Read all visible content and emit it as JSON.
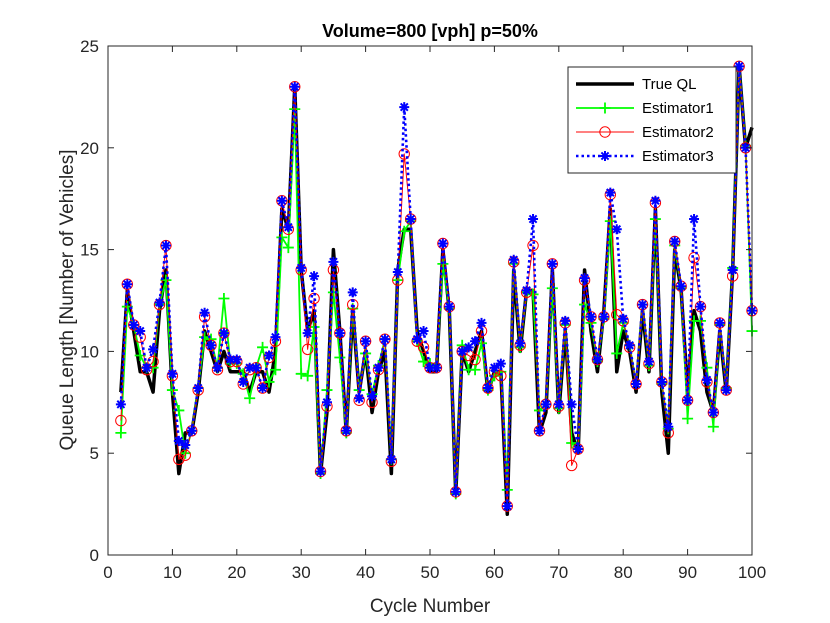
{
  "chart_data": {
    "type": "line",
    "title": "Volume=800 [vph] p=50%",
    "xlabel": "Cycle Number",
    "ylabel": "Queue Length [Number of Vehicles]",
    "xlim": [
      0,
      100
    ],
    "ylim": [
      0,
      25
    ],
    "xticks": [
      0,
      10,
      20,
      30,
      40,
      50,
      60,
      70,
      80,
      90,
      100
    ],
    "yticks": [
      0,
      5,
      10,
      15,
      20,
      25
    ],
    "grid": false,
    "legend_position": "top-right",
    "x": [
      2,
      3,
      4,
      5,
      6,
      7,
      8,
      9,
      10,
      11,
      12,
      13,
      14,
      15,
      16,
      17,
      18,
      19,
      20,
      21,
      22,
      23,
      24,
      25,
      26,
      27,
      28,
      29,
      30,
      31,
      32,
      33,
      34,
      35,
      36,
      37,
      38,
      39,
      40,
      41,
      42,
      43,
      44,
      45,
      46,
      47,
      48,
      49,
      50,
      51,
      52,
      53,
      54,
      55,
      56,
      57,
      58,
      59,
      60,
      61,
      62,
      63,
      64,
      65,
      66,
      67,
      68,
      69,
      70,
      71,
      72,
      73,
      74,
      75,
      76,
      77,
      78,
      79,
      80,
      81,
      82,
      83,
      84,
      85,
      86,
      87,
      88,
      89,
      90,
      91,
      92,
      93,
      94,
      95,
      96,
      97,
      98,
      99,
      100
    ],
    "series": [
      {
        "name": "True QL",
        "color": "#000000",
        "style": "thick-solid",
        "marker": "none",
        "values": [
          8,
          13,
          11,
          9,
          9,
          8,
          12,
          14,
          8,
          4,
          6,
          6,
          8,
          11,
          10,
          9,
          10,
          9,
          9,
          9,
          8,
          9,
          9,
          8,
          10,
          17,
          16,
          23,
          14,
          11,
          12,
          4,
          7,
          15,
          11,
          6,
          12,
          8,
          10,
          7,
          9,
          10,
          4,
          14,
          16,
          16,
          11,
          10,
          9,
          9,
          15,
          12,
          3,
          10,
          9,
          10,
          11,
          8,
          9,
          9,
          2,
          14,
          10,
          13,
          13,
          6,
          7,
          14,
          7,
          11,
          6,
          5,
          14,
          11,
          9,
          12,
          17,
          9,
          11,
          10,
          8,
          12,
          9,
          17,
          8,
          5,
          15,
          13,
          8,
          12,
          11,
          8,
          7,
          11,
          8,
          14,
          24,
          20,
          21
        ]
      },
      {
        "name": "Estimator1",
        "color": "#00ff00",
        "style": "solid",
        "marker": "plus",
        "values": [
          6,
          12.2,
          11.3,
          9.8,
          9.2,
          9.2,
          12.3,
          13.5,
          8.1,
          7.1,
          5,
          6.1,
          8.2,
          10.7,
          10.6,
          9.2,
          12.6,
          9.4,
          9.4,
          8.9,
          7.7,
          9.2,
          10.2,
          8.5,
          9.1,
          15.6,
          15.1,
          21.9,
          8.9,
          8.8,
          11.2,
          4,
          8.1,
          12.9,
          9.7,
          6,
          12.1,
          8.1,
          9.9,
          7.9,
          9.3,
          10.6,
          4.7,
          13.5,
          15.9,
          16.4,
          10.5,
          9.5,
          9.4,
          9.2,
          14.3,
          12.1,
          3,
          10.3,
          9.1,
          9.1,
          10.4,
          8.1,
          8.8,
          9,
          3.2,
          14.3,
          10.2,
          12.9,
          12.8,
          7.1,
          7.4,
          13.1,
          7.2,
          11.3,
          5.5,
          5.2,
          12.3,
          11.4,
          9.5,
          11.6,
          16.4,
          9.9,
          11.4,
          10.3,
          8.4,
          12.3,
          9.3,
          16.5,
          8.4,
          6.2,
          15.2,
          13.1,
          6.7,
          11.5,
          11.5,
          9.2,
          6.3,
          11.3,
          8.2,
          14.1,
          24,
          20.1,
          11
        ]
      },
      {
        "name": "Estimator2",
        "color": "#ff0000",
        "style": "thin-solid",
        "marker": "circle",
        "values": [
          6.6,
          13.3,
          11.3,
          10.7,
          9.1,
          9.5,
          12.3,
          15.2,
          8.8,
          4.7,
          4.9,
          6.1,
          8.1,
          11.7,
          10.3,
          9.1,
          10.9,
          9.5,
          9.5,
          8.4,
          9.1,
          9.2,
          8.2,
          9.7,
          10.5,
          17.4,
          16,
          23,
          14,
          10.1,
          12.6,
          4.1,
          7.3,
          14,
          10.9,
          6.1,
          12.3,
          7.6,
          10.5,
          7.5,
          9.1,
          10.6,
          4.6,
          13.5,
          19.7,
          16.5,
          10.5,
          10.2,
          9.2,
          9.2,
          15.3,
          12.2,
          3.1,
          10,
          9.8,
          9.6,
          11,
          8.2,
          9,
          8.8,
          2.4,
          14.4,
          10.3,
          12.9,
          15.2,
          6.1,
          7.4,
          14.3,
          7.3,
          11.4,
          4.4,
          5.2,
          13.5,
          11.7,
          9.6,
          11.7,
          17.7,
          11.8,
          11.5,
          10.2,
          8.4,
          12.3,
          9.4,
          17.3,
          8.5,
          6,
          15.4,
          13.2,
          7.6,
          14.6,
          12.2,
          8.5,
          7,
          11.4,
          8.1,
          13.7,
          24,
          20,
          12
        ]
      },
      {
        "name": "Estimator3",
        "color": "#0000ff",
        "style": "dotted",
        "marker": "asterisk",
        "values": [
          7.4,
          13.3,
          11.3,
          11,
          9.2,
          10.1,
          12.4,
          15.2,
          8.9,
          5.6,
          5.4,
          6.1,
          8.2,
          11.9,
          10.3,
          9.2,
          10.9,
          9.6,
          9.6,
          8.5,
          9.2,
          9.2,
          8.2,
          9.8,
          10.7,
          17.4,
          16.1,
          23,
          14.1,
          10.9,
          13.7,
          4.1,
          7.5,
          14.4,
          10.9,
          6.1,
          12.9,
          7.7,
          10.5,
          7.8,
          9.2,
          10.6,
          4.7,
          13.9,
          22,
          16.5,
          10.6,
          11,
          9.2,
          9.2,
          15.3,
          12.2,
          3.1,
          10,
          10.2,
          10.5,
          11.4,
          8.2,
          9.2,
          9.4,
          2.4,
          14.5,
          10.4,
          13,
          16.5,
          6.1,
          7.4,
          14.3,
          7.4,
          11.5,
          7.4,
          5.2,
          13.6,
          11.7,
          9.6,
          11.7,
          17.8,
          16,
          11.6,
          10.3,
          8.4,
          12.3,
          9.5,
          17.4,
          8.5,
          6.3,
          15.4,
          13.2,
          7.6,
          16.5,
          12.2,
          8.6,
          7,
          11.4,
          8.1,
          14,
          24,
          20,
          12
        ]
      }
    ]
  }
}
